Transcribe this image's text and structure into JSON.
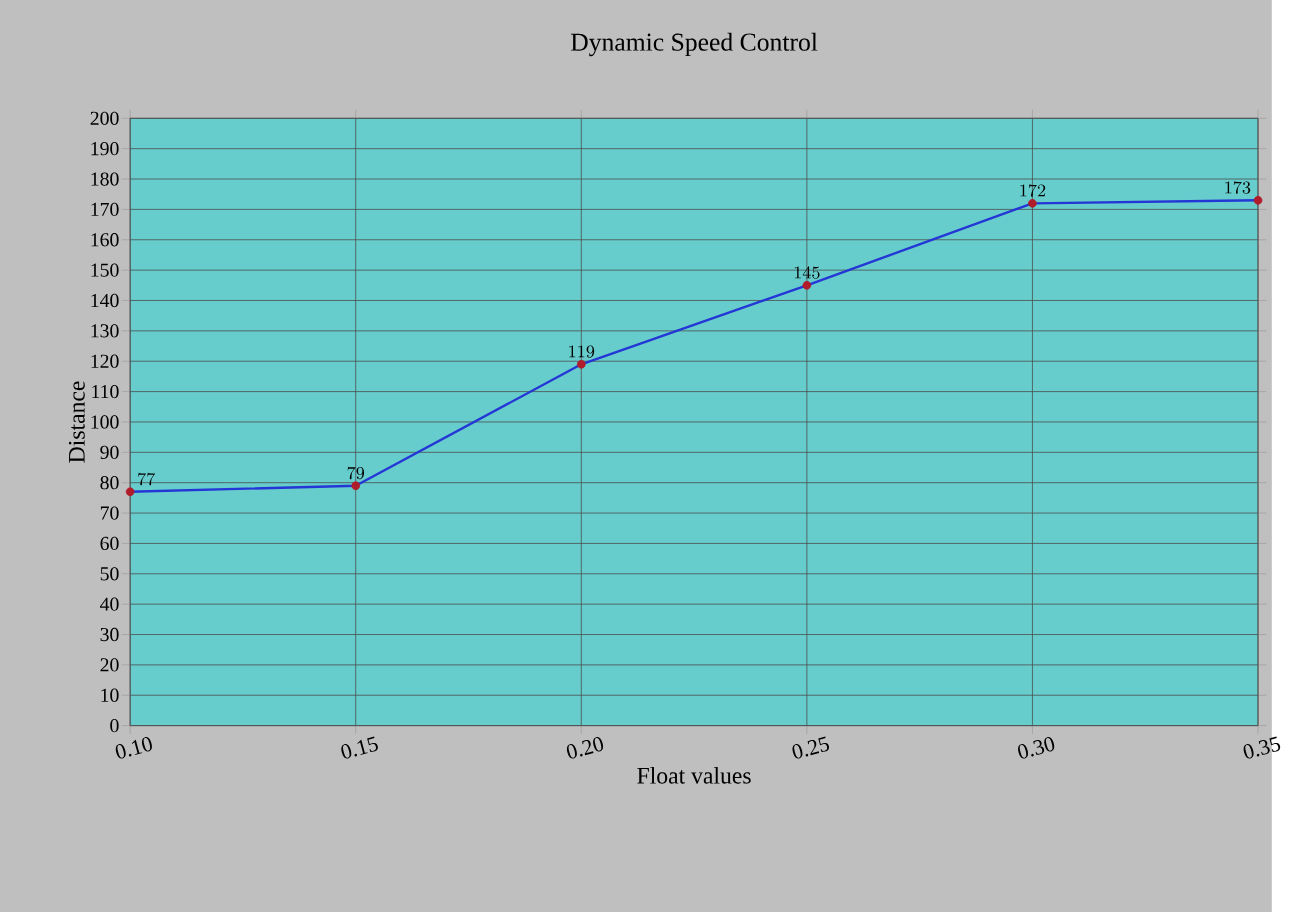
{
  "chart_data": {
    "type": "line",
    "title": "Dynamic Speed Control",
    "xlabel": "Float values",
    "ylabel": "Distance",
    "x": [
      0.1,
      0.15,
      0.2,
      0.25,
      0.3,
      0.35
    ],
    "series": [
      {
        "color": "#2436d6",
        "colors": [
          "#b01c2a",
          "#b01c2a",
          "#b01c2a",
          "#b01c2a",
          "#b01c2a",
          "#b01c2a"
        ],
        "values": [
          77,
          79,
          119,
          145,
          172,
          173
        ]
      }
    ],
    "xlim": [
      0.1,
      0.35
    ],
    "xticks": [
      {
        "value": 0.1,
        "label": "0.10"
      },
      {
        "value": 0.15,
        "label": "0.15"
      },
      {
        "value": 0.2,
        "label": "0.20"
      },
      {
        "value": 0.25,
        "label": "0.25"
      },
      {
        "value": 0.3,
        "label": "0.30"
      },
      {
        "value": 0.35,
        "label": "0.35"
      }
    ],
    "ylim": [
      0,
      200
    ],
    "yticks": [
      0,
      10,
      20,
      30,
      40,
      50,
      60,
      70,
      80,
      90,
      100,
      110,
      120,
      130,
      140,
      150,
      160,
      170,
      180,
      190,
      200
    ],
    "grid": true,
    "marker": "circle",
    "line_style": "solid",
    "data_labels": true
  }
}
